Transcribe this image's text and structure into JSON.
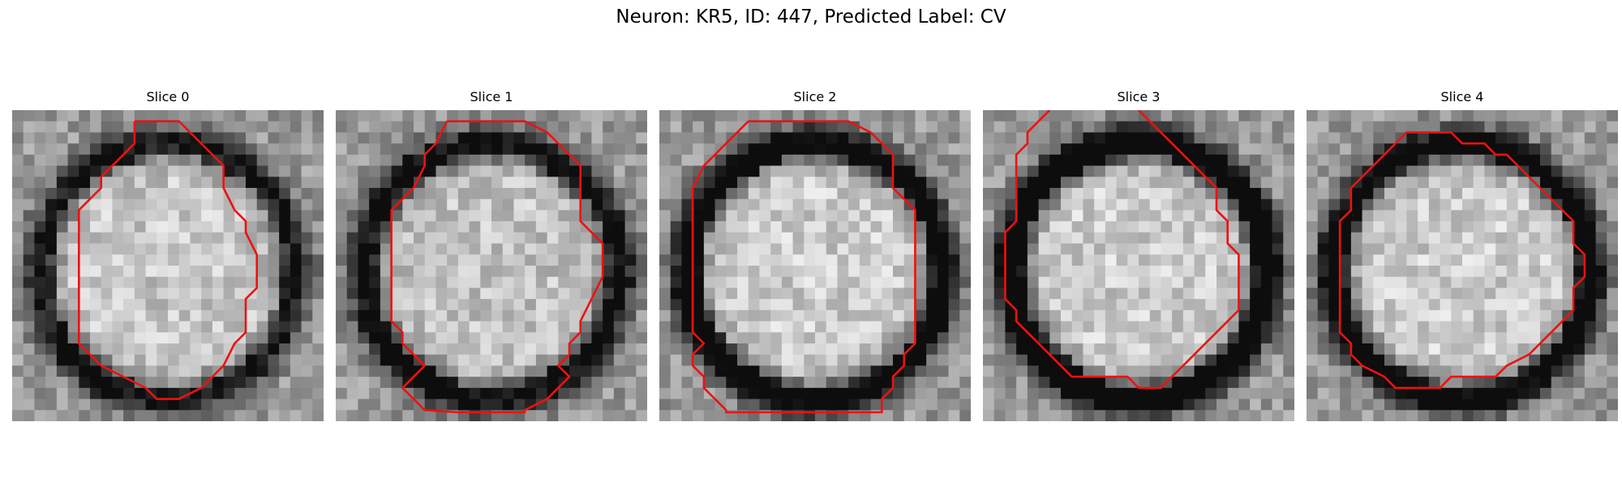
{
  "title": "Neuron: KR5, ID: 447, Predicted Label: CV",
  "slices": [
    {
      "label": "Slice 0",
      "seed": 11,
      "ring_darkness": 0.55,
      "inner_lightness": 0.78,
      "contour": [
        [
          11,
          1
        ],
        [
          15,
          1
        ],
        [
          19,
          5
        ],
        [
          19,
          6
        ],
        [
          19,
          7
        ],
        [
          20,
          9
        ],
        [
          21,
          10
        ],
        [
          21,
          11
        ],
        [
          22,
          13
        ],
        [
          22,
          16
        ],
        [
          21,
          17
        ],
        [
          21,
          18
        ],
        [
          21,
          20
        ],
        [
          20,
          21
        ],
        [
          19,
          23
        ],
        [
          17,
          25
        ],
        [
          15,
          26
        ],
        [
          13,
          26
        ],
        [
          12,
          25
        ],
        [
          10,
          24
        ],
        [
          8,
          23
        ],
        [
          7,
          22
        ],
        [
          6,
          21
        ],
        [
          6,
          20
        ],
        [
          6,
          19
        ],
        [
          6,
          9
        ],
        [
          7,
          8
        ],
        [
          8,
          7
        ],
        [
          8,
          6
        ],
        [
          10,
          4
        ],
        [
          11,
          3
        ],
        [
          11,
          1
        ]
      ]
    },
    {
      "label": "Slice 1",
      "seed": 23,
      "ring_darkness": 0.6,
      "inner_lightness": 0.76,
      "contour": [
        [
          10,
          1
        ],
        [
          17,
          1
        ],
        [
          19,
          2
        ],
        [
          20,
          3
        ],
        [
          21,
          4
        ],
        [
          22,
          5
        ],
        [
          22,
          8
        ],
        [
          22,
          9
        ],
        [
          22,
          10
        ],
        [
          23,
          11
        ],
        [
          24,
          12
        ],
        [
          24,
          15
        ],
        [
          23,
          17
        ],
        [
          22,
          19
        ],
        [
          22,
          20
        ],
        [
          21,
          21
        ],
        [
          21,
          22
        ],
        [
          20,
          23
        ],
        [
          21,
          24
        ],
        [
          20,
          25
        ],
        [
          19,
          26
        ],
        [
          17,
          27
        ],
        [
          17,
          27.2
        ],
        [
          11,
          27.2
        ],
        [
          8,
          27
        ],
        [
          7,
          26
        ],
        [
          6,
          25
        ],
        [
          7,
          24
        ],
        [
          8,
          23
        ],
        [
          7,
          22
        ],
        [
          6,
          21
        ],
        [
          6,
          20
        ],
        [
          5,
          19
        ],
        [
          5,
          9
        ],
        [
          6,
          8
        ],
        [
          7,
          7
        ],
        [
          8,
          5
        ],
        [
          8,
          4
        ],
        [
          9,
          3
        ],
        [
          10,
          1
        ]
      ]
    },
    {
      "label": "Slice 2",
      "seed": 37,
      "ring_darkness": 0.72,
      "inner_lightness": 0.8,
      "contour": [
        [
          8,
          1
        ],
        [
          17,
          1
        ],
        [
          19,
          2
        ],
        [
          20,
          3
        ],
        [
          21,
          4
        ],
        [
          21,
          7
        ],
        [
          22,
          8
        ],
        [
          23,
          9
        ],
        [
          23,
          18
        ],
        [
          23,
          21
        ],
        [
          22,
          22
        ],
        [
          22,
          23
        ],
        [
          21,
          24
        ],
        [
          21,
          25
        ],
        [
          20,
          26
        ],
        [
          20,
          27.2
        ],
        [
          6,
          27.2
        ],
        [
          6,
          27
        ],
        [
          5,
          26
        ],
        [
          4,
          25
        ],
        [
          4,
          24
        ],
        [
          3,
          23
        ],
        [
          3,
          22
        ],
        [
          4,
          21
        ],
        [
          3,
          20
        ],
        [
          3,
          19
        ],
        [
          3,
          7
        ],
        [
          4,
          5
        ],
        [
          5,
          4
        ],
        [
          6,
          3
        ],
        [
          7,
          2
        ],
        [
          8,
          1
        ]
      ]
    },
    {
      "label": "Slice 3",
      "seed": 53,
      "ring_darkness": 0.85,
      "inner_lightness": 0.8,
      "contour": [
        [
          6,
          0
        ],
        [
          5,
          1
        ],
        [
          4,
          2
        ],
        [
          4,
          3
        ],
        [
          3,
          4
        ],
        [
          3,
          5
        ],
        [
          3,
          6
        ],
        [
          3,
          10
        ],
        [
          2,
          11
        ],
        [
          2,
          12
        ],
        [
          2,
          17
        ],
        [
          3,
          18
        ],
        [
          3,
          19
        ],
        [
          4,
          20
        ],
        [
          5,
          21
        ],
        [
          6,
          22
        ],
        [
          7,
          23
        ],
        [
          8,
          24
        ],
        [
          13,
          24
        ],
        [
          14,
          25
        ],
        [
          16,
          25
        ],
        [
          17,
          24
        ],
        [
          18,
          23
        ],
        [
          19,
          22
        ],
        [
          20,
          21
        ],
        [
          21,
          20
        ],
        [
          22,
          19
        ],
        [
          23,
          18
        ],
        [
          23,
          13
        ],
        [
          22,
          12
        ],
        [
          22,
          10
        ],
        [
          21,
          9
        ],
        [
          21,
          7
        ],
        [
          20,
          6
        ],
        [
          19,
          5
        ],
        [
          18,
          4
        ],
        [
          17,
          3
        ],
        [
          16,
          2
        ],
        [
          15,
          1
        ],
        [
          14,
          0
        ]
      ]
    },
    {
      "label": "Slice 4",
      "seed": 71,
      "ring_darkness": 0.7,
      "inner_lightness": 0.8,
      "contour": [
        [
          10,
          2
        ],
        [
          13,
          2
        ],
        [
          14,
          3
        ],
        [
          16,
          3
        ],
        [
          17,
          4
        ],
        [
          18,
          4
        ],
        [
          19,
          5
        ],
        [
          20,
          6
        ],
        [
          21,
          7
        ],
        [
          22,
          8
        ],
        [
          23,
          9
        ],
        [
          24,
          10
        ],
        [
          24,
          12
        ],
        [
          25,
          13
        ],
        [
          25,
          15
        ],
        [
          24,
          16
        ],
        [
          24,
          18
        ],
        [
          23,
          19
        ],
        [
          22,
          20
        ],
        [
          21,
          21
        ],
        [
          20,
          22
        ],
        [
          18,
          23
        ],
        [
          17,
          24
        ],
        [
          13,
          24
        ],
        [
          12,
          25
        ],
        [
          8,
          25
        ],
        [
          7,
          24
        ],
        [
          5,
          23
        ],
        [
          4,
          22
        ],
        [
          4,
          21
        ],
        [
          3,
          20
        ],
        [
          3,
          19
        ],
        [
          3,
          10
        ],
        [
          4,
          9
        ],
        [
          4,
          7
        ],
        [
          5,
          6
        ],
        [
          6,
          5
        ],
        [
          7,
          4
        ],
        [
          8,
          3
        ],
        [
          9,
          2
        ],
        [
          10,
          2
        ]
      ]
    }
  ],
  "colors": {
    "contour": "#ee1111"
  }
}
